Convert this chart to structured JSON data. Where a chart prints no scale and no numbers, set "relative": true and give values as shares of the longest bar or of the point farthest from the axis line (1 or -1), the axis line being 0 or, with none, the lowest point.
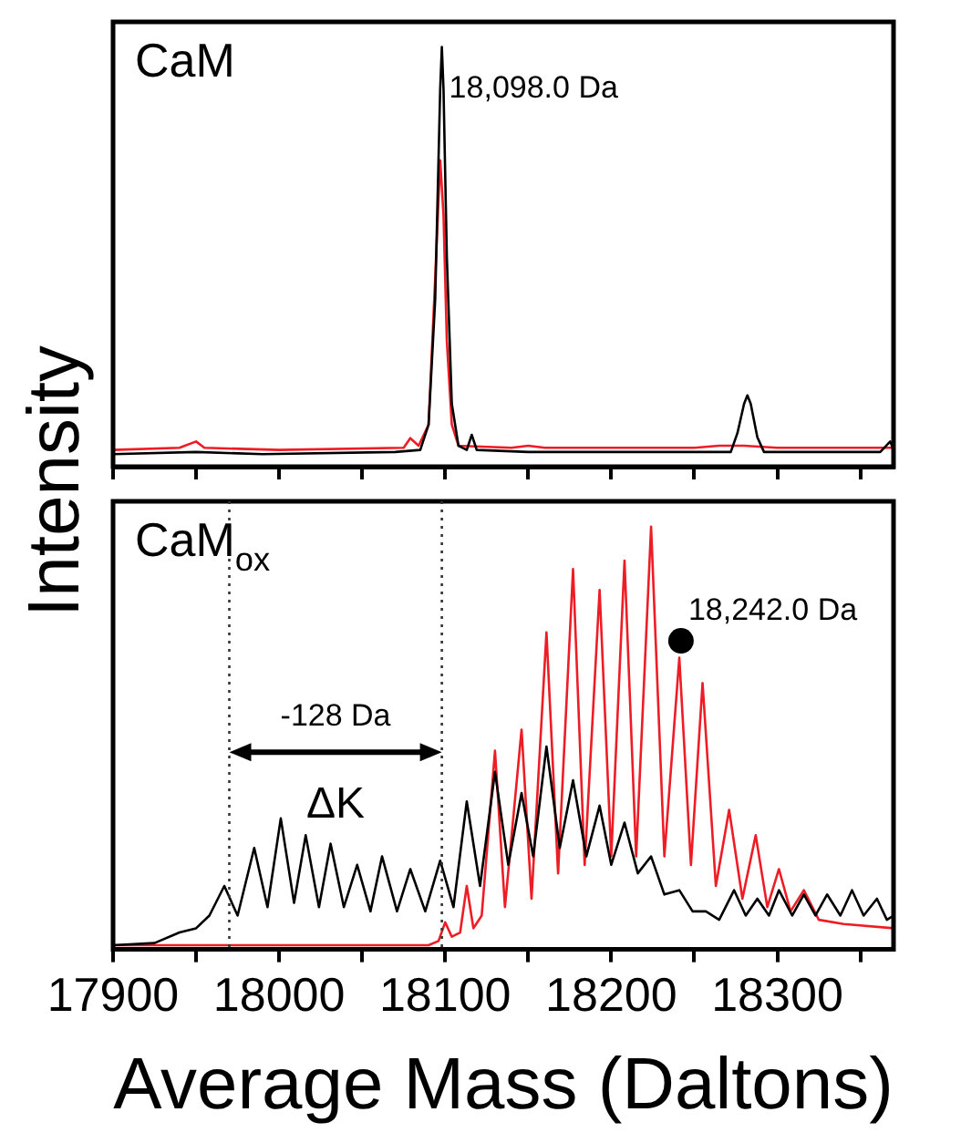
{
  "chart_data": [
    {
      "type": "line",
      "relative": true,
      "ylabel": "Intensity",
      "xlim": [
        17900,
        18370
      ],
      "xticks": [
        17900,
        {
          "value": 17950,
          "label": null
        },
        18000,
        {
          "value": 18050,
          "label": null
        },
        18100,
        {
          "value": 18150,
          "label": null
        },
        18200,
        {
          "value": 18250,
          "label": null
        },
        18300,
        {
          "value": 18350,
          "label": null
        }
      ],
      "tick_labels": false,
      "grid": false,
      "legend": false,
      "annotations": [
        "CaM",
        {
          "text": "18,098.0 Da",
          "x": 18098,
          "y": 0.88
        }
      ],
      "series": [
        {
          "color": "#ee1c25",
          "x": [
            17900,
            17940,
            17950,
            17955,
            18000,
            18075,
            18079,
            18084,
            18090,
            18094,
            18097,
            18099,
            18101,
            18104,
            18108,
            18140,
            18150,
            18160,
            18250,
            18265,
            18280,
            18300,
            18370
          ],
          "values": [
            0.04,
            0.045,
            0.06,
            0.045,
            0.04,
            0.045,
            0.068,
            0.05,
            0.1,
            0.45,
            0.73,
            0.6,
            0.3,
            0.1,
            0.05,
            0.045,
            0.05,
            0.045,
            0.045,
            0.05,
            0.05,
            0.045,
            0.045
          ]
        },
        {
          "color": "#000000",
          "x": [
            17900,
            17950,
            17990,
            18070,
            18085,
            18090,
            18094,
            18097,
            18098,
            18099,
            18101,
            18104,
            18108,
            18113,
            18116,
            18119,
            18150,
            18200,
            18250,
            18272,
            18276,
            18280,
            18282,
            18284,
            18288,
            18292,
            18340,
            18362,
            18368,
            18370
          ],
          "values": [
            0.03,
            0.035,
            0.03,
            0.035,
            0.04,
            0.1,
            0.4,
            0.9,
            1.0,
            0.9,
            0.5,
            0.15,
            0.05,
            0.04,
            0.076,
            0.04,
            0.035,
            0.035,
            0.035,
            0.035,
            0.08,
            0.15,
            0.17,
            0.15,
            0.07,
            0.035,
            0.035,
            0.035,
            0.06,
            0.04
          ]
        }
      ]
    },
    {
      "type": "line",
      "relative": true,
      "xlabel": "Average Mass (Daltons)",
      "xlim": [
        17900,
        18370
      ],
      "xticks": [
        17900,
        {
          "value": 17950,
          "label": null
        },
        18000,
        {
          "value": 18050,
          "label": null
        },
        18100,
        {
          "value": 18150,
          "label": null
        },
        18200,
        {
          "value": 18250,
          "label": null
        },
        18300,
        {
          "value": 18350,
          "label": null
        }
      ],
      "tick_labels": "x",
      "grid": false,
      "legend": false,
      "annotations": [
        "CaM$_{ox}$",
        {
          "text": "18,242.0 Da",
          "x": 18242,
          "y": 0.78
        },
        "-128 Da",
        "ΔK"
      ],
      "ref_lines": [
        {
          "axis": "x",
          "value": 17970,
          "line_style": "dotted",
          "color": "#333333"
        },
        {
          "axis": "x",
          "value": 18098,
          "line_style": "dotted",
          "color": "#333333"
        }
      ],
      "series": [
        {
          "color": "#ee1c25",
          "x": [
            17900,
            18000,
            18090,
            18096,
            18100,
            18104,
            18109,
            18113,
            18117,
            18122,
            18130,
            18136,
            18146,
            18152,
            18161,
            18168,
            18177,
            18184,
            18193,
            18200,
            18208,
            18215,
            18224,
            18232,
            18241,
            18248,
            18255,
            18263,
            18271,
            18279,
            18287,
            18294,
            18301,
            18308,
            18316,
            18325,
            18340,
            18370
          ],
          "values": [
            0.01,
            0.01,
            0.01,
            0.02,
            0.064,
            0.03,
            0.04,
            0.15,
            0.05,
            0.08,
            0.47,
            0.1,
            0.52,
            0.12,
            0.75,
            0.18,
            0.9,
            0.2,
            0.85,
            0.22,
            0.92,
            0.22,
            1.0,
            0.22,
            0.69,
            0.2,
            0.63,
            0.15,
            0.33,
            0.12,
            0.27,
            0.1,
            0.19,
            0.09,
            0.14,
            0.07,
            0.06,
            0.05
          ]
        },
        {
          "color": "#000000",
          "x": [
            17900,
            17925,
            17940,
            17950,
            17958,
            17967,
            17975,
            17985,
            17993,
            18001,
            18009,
            18016,
            18024,
            18031,
            18039,
            18047,
            18055,
            18062,
            18071,
            18079,
            18088,
            18097,
            18105,
            18113,
            18121,
            18130,
            18138,
            18146,
            18153,
            18161,
            18169,
            18177,
            18185,
            18193,
            18200,
            18208,
            18216,
            18224,
            18232,
            18241,
            18249,
            18257,
            18265,
            18274,
            18281,
            18288,
            18295,
            18301,
            18309,
            18316,
            18323,
            18330,
            18338,
            18345,
            18352,
            18360,
            18366,
            18370
          ],
          "values": [
            0.01,
            0.015,
            0.04,
            0.05,
            0.08,
            0.15,
            0.08,
            0.24,
            0.1,
            0.31,
            0.11,
            0.27,
            0.1,
            0.25,
            0.1,
            0.2,
            0.09,
            0.22,
            0.09,
            0.19,
            0.09,
            0.21,
            0.1,
            0.35,
            0.15,
            0.42,
            0.2,
            0.37,
            0.22,
            0.48,
            0.24,
            0.4,
            0.22,
            0.34,
            0.2,
            0.3,
            0.18,
            0.22,
            0.13,
            0.14,
            0.09,
            0.09,
            0.07,
            0.14,
            0.08,
            0.12,
            0.08,
            0.14,
            0.08,
            0.13,
            0.08,
            0.13,
            0.08,
            0.14,
            0.08,
            0.12,
            0.07,
            0.08
          ]
        },
        {
          "type": "scatter",
          "color": "#000000",
          "marker": "circle",
          "x": [
            18242
          ],
          "values": [
            0.73
          ]
        }
      ]
    }
  ]
}
